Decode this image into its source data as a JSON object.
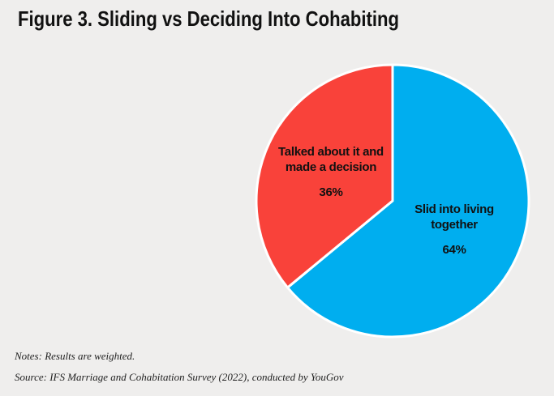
{
  "chart_data": {
    "type": "pie",
    "title": "Figure 3. Sliding vs Deciding Into Cohabiting",
    "categories": [
      "Slid into living together",
      "Talked about it and made a decision"
    ],
    "values": [
      64,
      36
    ],
    "value_labels": [
      "64%",
      "36%"
    ],
    "colors": [
      "#00aeef",
      "#f9423a"
    ],
    "notes": [
      "Notes: Results are weighted.",
      "Source: IFS Marriage and Cohabitation Survey (2022), conducted by YouGov"
    ]
  }
}
